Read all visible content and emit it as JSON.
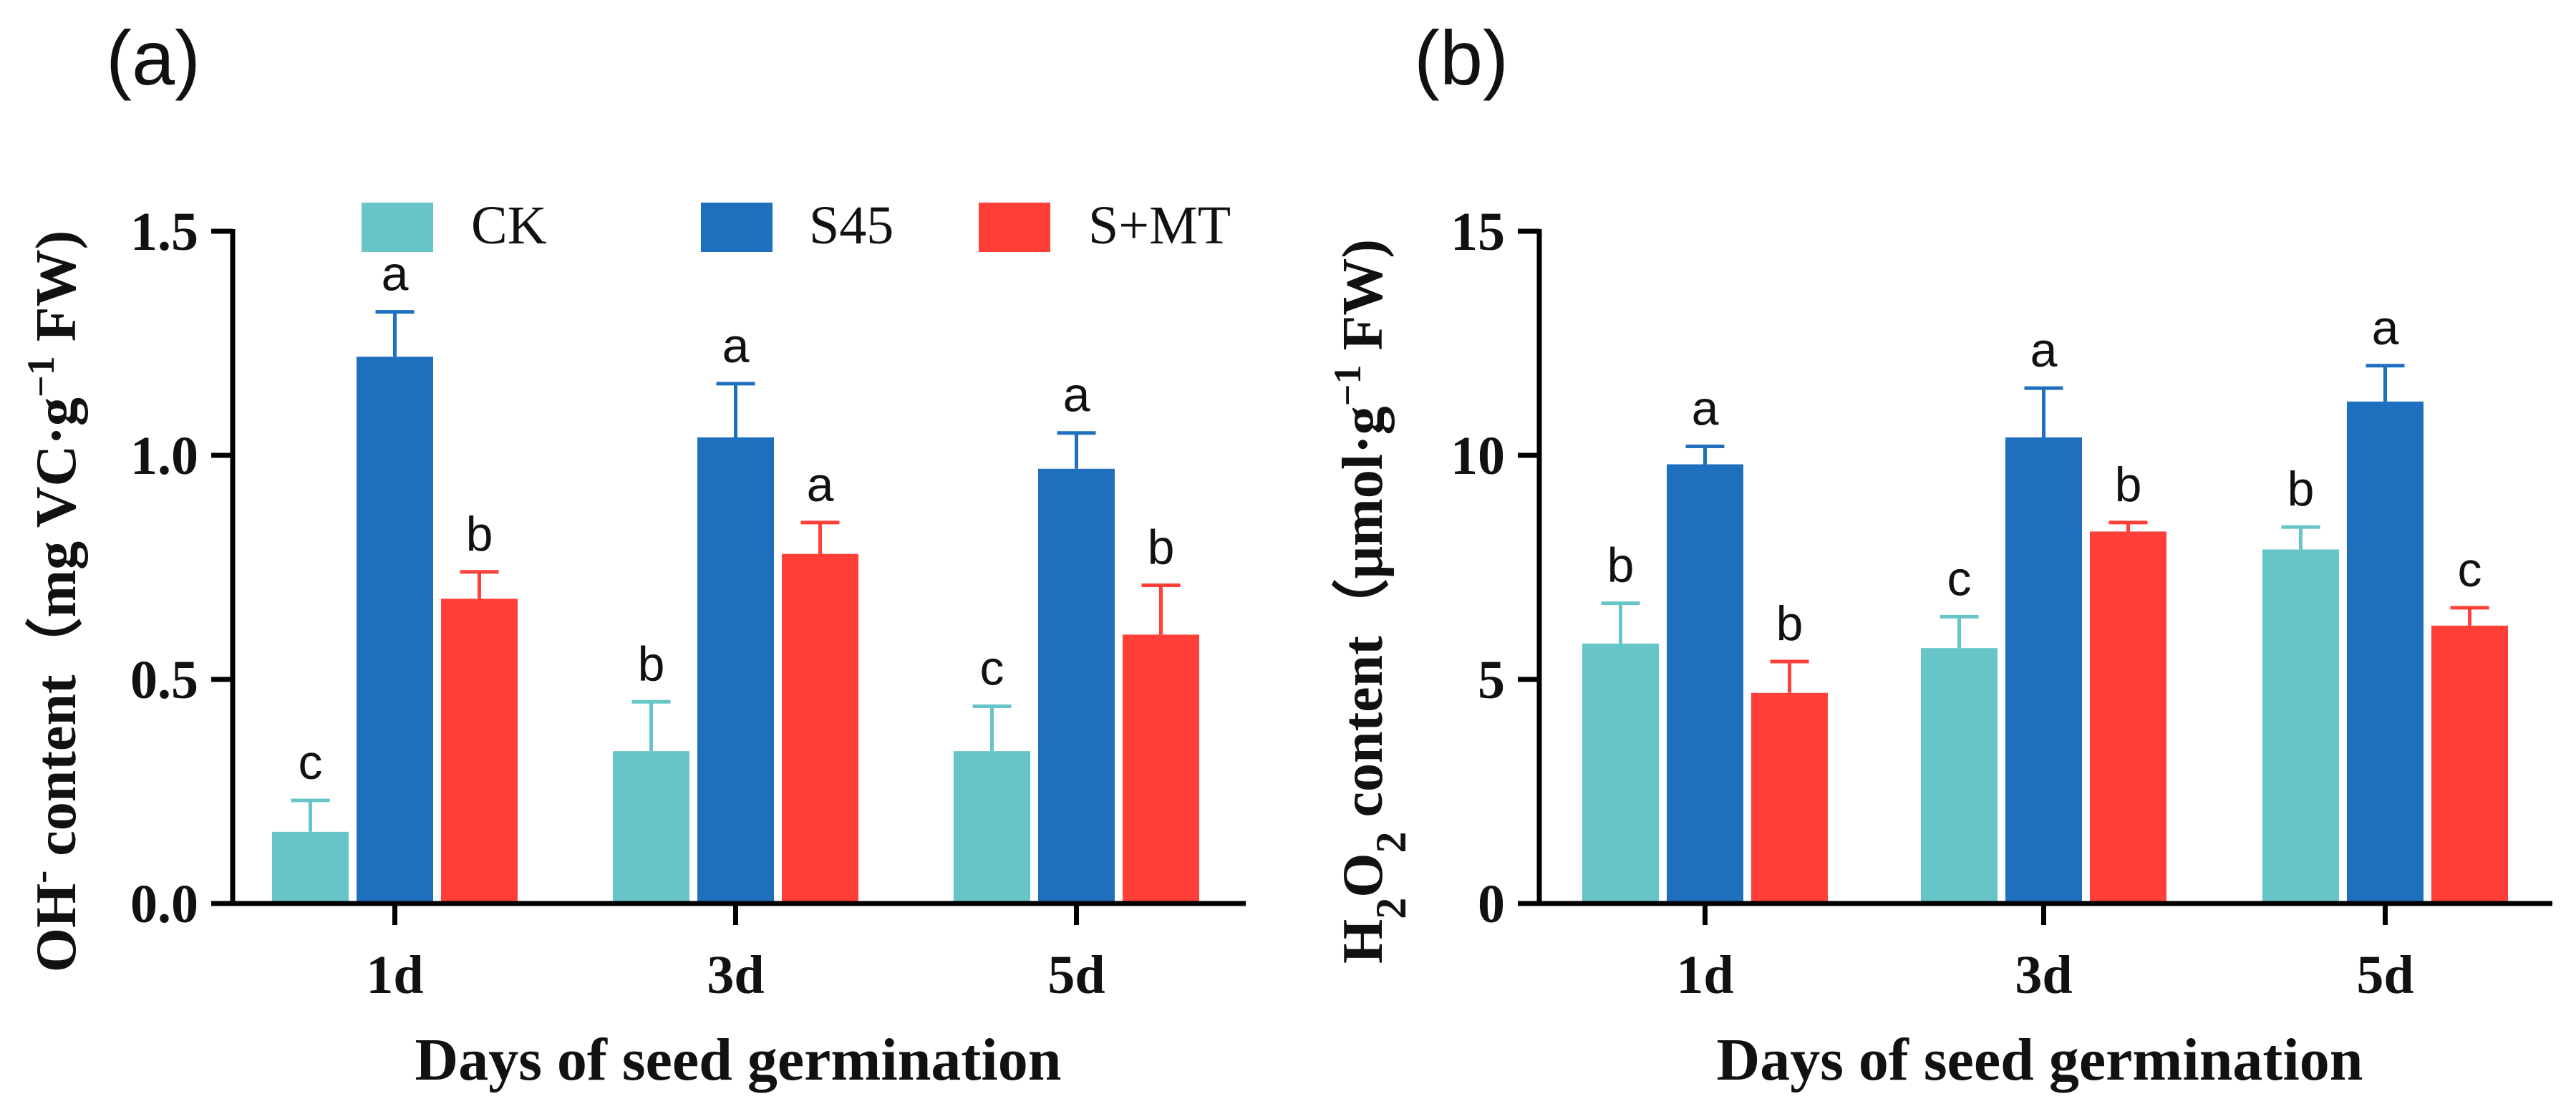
{
  "figure": {
    "panel_a_label": "(a)",
    "panel_b_label": "(b)"
  },
  "legend": [
    {
      "name": "CK",
      "color": "#68C5C7"
    },
    {
      "name": "S45",
      "color": "#1F6FBF"
    },
    {
      "name": "S+MT",
      "color": "#FF3F38"
    }
  ],
  "chart_data": [
    {
      "type": "bar",
      "panel": "a",
      "categories": [
        "1d",
        "3d",
        "5d"
      ],
      "series": [
        {
          "name": "CK",
          "values": [
            0.16,
            0.34,
            0.34
          ],
          "errors": [
            0.07,
            0.11,
            0.1
          ],
          "letters": [
            "c",
            "b",
            "c"
          ]
        },
        {
          "name": "S45",
          "values": [
            1.22,
            1.04,
            0.97
          ],
          "errors": [
            0.1,
            0.12,
            0.08
          ],
          "letters": [
            "a",
            "a",
            "a"
          ]
        },
        {
          "name": "S+MT",
          "values": [
            0.68,
            0.78,
            0.6
          ],
          "errors": [
            0.06,
            0.07,
            0.11
          ],
          "letters": [
            "b",
            "a",
            "b"
          ]
        }
      ],
      "ylim": [
        0,
        1.5
      ],
      "yticks": [
        0.0,
        0.5,
        1.0,
        1.5
      ],
      "ytick_labels": [
        "0.0",
        "0.5",
        "1.0",
        "1.5"
      ],
      "ylabel": {
        "part1": "OH",
        "sup1": "-",
        "part2": " content（mg VC·g",
        "sup2": "−1",
        "part3": " FW)"
      },
      "xlabel": "Days of seed germination",
      "legend_position": "top"
    },
    {
      "type": "bar",
      "panel": "b",
      "categories": [
        "1d",
        "3d",
        "5d"
      ],
      "series": [
        {
          "name": "CK",
          "values": [
            5.8,
            5.7,
            7.9
          ],
          "errors": [
            0.9,
            0.7,
            0.5
          ],
          "letters": [
            "b",
            "c",
            "b"
          ]
        },
        {
          "name": "S45",
          "values": [
            9.8,
            10.4,
            11.2
          ],
          "errors": [
            0.4,
            1.1,
            0.8
          ],
          "letters": [
            "a",
            "a",
            "a"
          ]
        },
        {
          "name": "S+MT",
          "values": [
            4.7,
            8.3,
            6.2
          ],
          "errors": [
            0.7,
            0.2,
            0.4
          ],
          "letters": [
            "b",
            "b",
            "c"
          ]
        }
      ],
      "ylim": [
        0,
        15
      ],
      "yticks": [
        0,
        5,
        10,
        15
      ],
      "ytick_labels": [
        "0",
        "5",
        "10",
        "15"
      ],
      "ylabel": {
        "part1": "H",
        "sub1": "2",
        "part2": "O",
        "sub2": "2",
        "part3": " content（μmol·g",
        "sup1": "−1",
        "part4": " FW)"
      },
      "xlabel": "Days of seed germination",
      "legend_position": "none"
    }
  ]
}
